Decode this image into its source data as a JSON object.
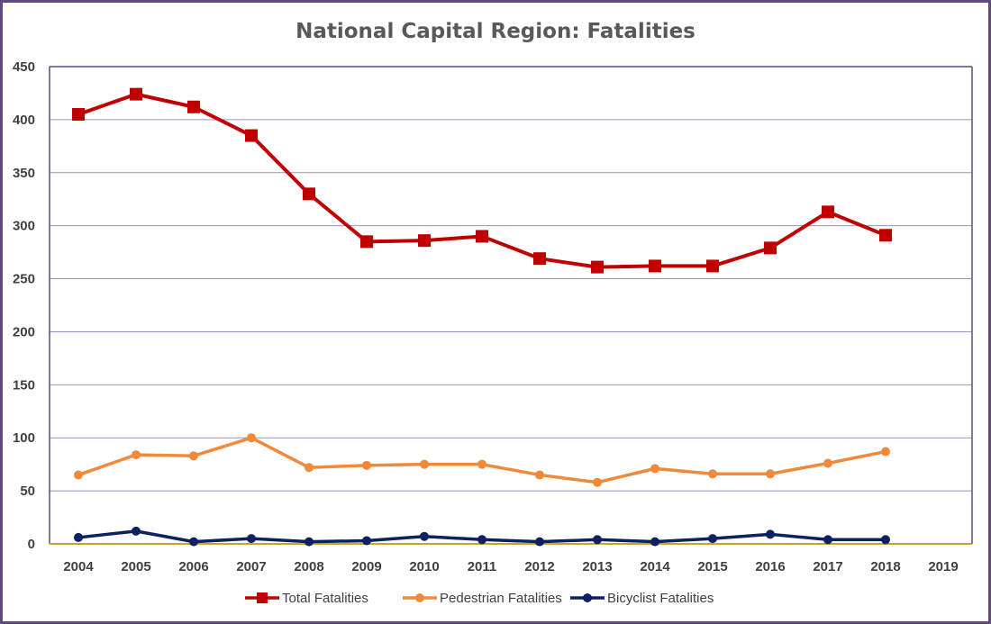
{
  "chart_data": {
    "type": "line",
    "title": "National Capital Region: Fatalities",
    "xlabel": "",
    "ylabel": "",
    "categories": [
      "2004",
      "2005",
      "2006",
      "2007",
      "2008",
      "2009",
      "2010",
      "2011",
      "2012",
      "2013",
      "2014",
      "2015",
      "2016",
      "2017",
      "2018",
      "2019"
    ],
    "ylim": [
      0,
      450
    ],
    "yticks": [
      0,
      50,
      100,
      150,
      200,
      250,
      300,
      350,
      400,
      450
    ],
    "grid": true,
    "legend": "bottom",
    "series": [
      {
        "name": "Total Fatalities",
        "color": "#c00000",
        "marker": "square",
        "values": [
          405,
          424,
          412,
          385,
          330,
          285,
          286,
          290,
          269,
          261,
          262,
          262,
          279,
          313,
          291,
          null
        ]
      },
      {
        "name": "Pedestrian Fatalities",
        "color": "#f08a3a",
        "marker": "circle",
        "values": [
          65,
          84,
          83,
          100,
          72,
          74,
          75,
          75,
          65,
          58,
          71,
          66,
          66,
          76,
          87,
          null
        ]
      },
      {
        "name": "Bicyclist Fatalities",
        "color": "#0d2060",
        "marker": "circle",
        "values": [
          6,
          12,
          2,
          5,
          2,
          3,
          7,
          4,
          2,
          4,
          2,
          5,
          9,
          4,
          4,
          null
        ]
      }
    ],
    "colors": {
      "frame": "#604a7b",
      "grid": "#9d8fbf",
      "x_axis": "#c9a227"
    }
  }
}
